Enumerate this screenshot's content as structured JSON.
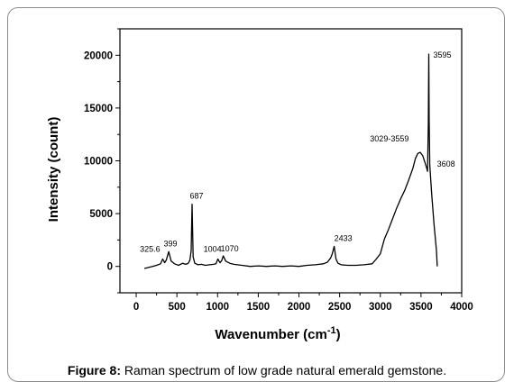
{
  "chart_data": {
    "type": "line",
    "xlabel": "Wavenumber (cm",
    "xlabel_sup": "-1",
    "xlabel_close": ")",
    "ylabel": "Intensity (count)",
    "xlim": [
      -200,
      4000
    ],
    "ylim": [
      -2500,
      22500
    ],
    "x_ticks": [
      0,
      500,
      1000,
      1500,
      2000,
      2500,
      3000,
      3500,
      4000
    ],
    "x_tick_labels": [
      "0",
      "500",
      "1000",
      "1500",
      "2000",
      "2500",
      "3000",
      "3500",
      "4000"
    ],
    "y_ticks": [
      0,
      5000,
      10000,
      15000,
      20000
    ],
    "y_tick_labels": [
      "0",
      "5000",
      "10000",
      "15000",
      "20000"
    ],
    "grid": false,
    "series": [
      {
        "x": [
          100,
          150,
          200,
          250,
          300,
          325.6,
          350,
          370,
          399,
          430,
          470,
          520,
          570,
          610,
          640,
          660,
          675,
          687,
          700,
          720,
          760,
          800,
          850,
          900,
          950,
          980,
          1004,
          1030,
          1050,
          1070,
          1100,
          1150,
          1200,
          1300,
          1400,
          1500,
          1600,
          1700,
          1800,
          1900,
          2000,
          2100,
          2200,
          2300,
          2350,
          2390,
          2410,
          2433,
          2455,
          2480,
          2520,
          2600,
          2700,
          2800,
          2900,
          2950,
          3000,
          3050,
          3100,
          3150,
          3200,
          3250,
          3300,
          3350,
          3400,
          3430,
          3460,
          3490,
          3520,
          3550,
          3570,
          3580,
          3590,
          3595,
          3600,
          3608,
          3630,
          3660,
          3690,
          3700
        ],
        "y": [
          -200,
          -100,
          0,
          100,
          250,
          700,
          350,
          600,
          1400,
          500,
          250,
          100,
          300,
          200,
          300,
          600,
          1500,
          5900,
          900,
          300,
          150,
          200,
          100,
          150,
          200,
          250,
          700,
          350,
          550,
          1000,
          500,
          300,
          200,
          100,
          0,
          50,
          0,
          50,
          0,
          50,
          0,
          100,
          150,
          250,
          400,
          800,
          1200,
          1900,
          700,
          300,
          150,
          100,
          100,
          150,
          250,
          700,
          1200,
          2600,
          3500,
          4500,
          5500,
          6400,
          7200,
          8200,
          9300,
          10200,
          10700,
          10800,
          10500,
          9800,
          9300,
          9000,
          13500,
          20100,
          14000,
          9600,
          7000,
          4000,
          1500,
          0
        ]
      }
    ],
    "annotations": [
      {
        "text": "325.6",
        "x": 325.6,
        "y": 700
      },
      {
        "text": "399",
        "x": 399,
        "y": 1400
      },
      {
        "text": "687",
        "x": 687,
        "y": 5900
      },
      {
        "text": "1004",
        "x": 1004,
        "y": 700
      },
      {
        "text": "1070",
        "x": 1070,
        "y": 1000
      },
      {
        "text": "2433",
        "x": 2433,
        "y": 1900
      },
      {
        "text": "3029-3559",
        "x": 3300,
        "y": 10800
      },
      {
        "text": "3595",
        "x": 3595,
        "y": 20100
      },
      {
        "text": "3608",
        "x": 3608,
        "y": 9600
      }
    ]
  },
  "caption": {
    "label": "Figure 8:",
    "text": " Raman spectrum of low grade natural emerald gemstone."
  }
}
